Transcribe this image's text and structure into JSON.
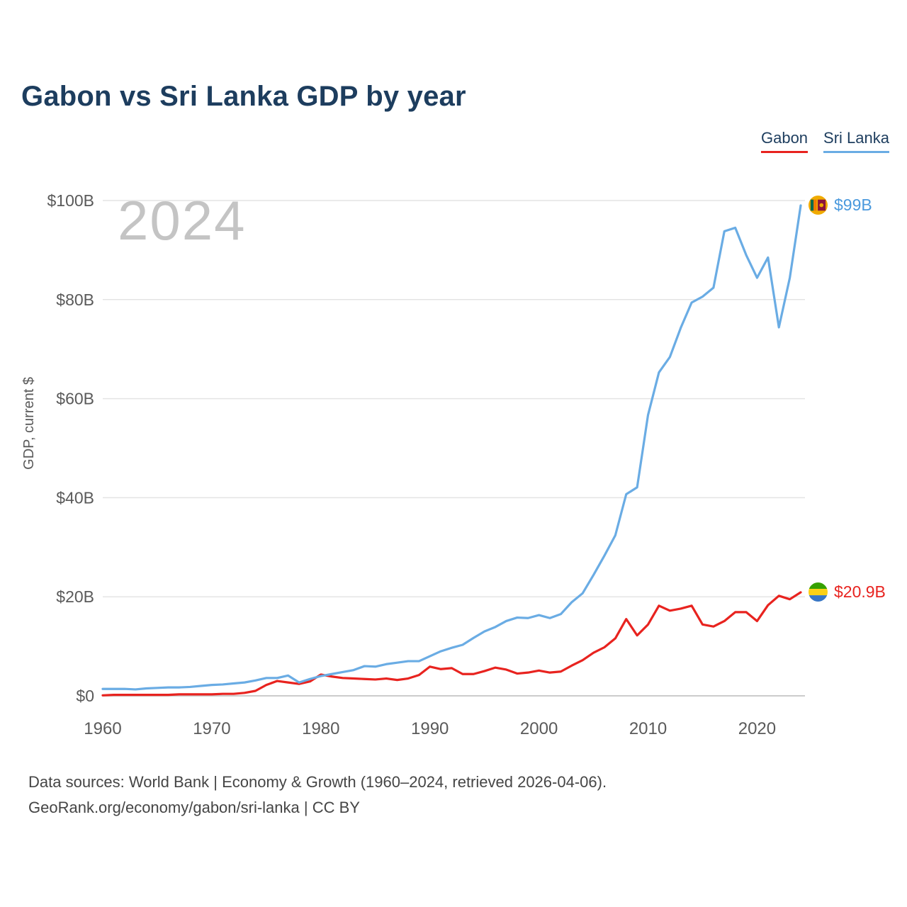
{
  "title": "Gabon vs Sri Lanka GDP by year",
  "watermark": "2024",
  "legend": [
    {
      "label": "Gabon",
      "color": "#e8231f"
    },
    {
      "label": "Sri Lanka",
      "color": "#6aace4"
    }
  ],
  "y_axis": {
    "label": "GDP, current $",
    "ticks": [
      {
        "value": 0,
        "label": "$0"
      },
      {
        "value": 20,
        "label": "$20B"
      },
      {
        "value": 40,
        "label": "$40B"
      },
      {
        "value": 60,
        "label": "$60B"
      },
      {
        "value": 80,
        "label": "$80B"
      },
      {
        "value": 100,
        "label": "$100B"
      }
    ]
  },
  "x_axis": {
    "ticks": [
      1960,
      1970,
      1980,
      1990,
      2000,
      2010,
      2020
    ]
  },
  "end_labels": [
    {
      "series": "Sri Lanka",
      "text": "$99B"
    },
    {
      "series": "Gabon",
      "text": "$20.9B"
    }
  ],
  "footer": {
    "line1": "Data sources: World Bank | Economy & Growth (1960–2024, retrieved 2026-04-06).",
    "line2": "GeoRank.org/economy/gabon/sri-lanka | CC BY"
  },
  "chart_data": {
    "type": "line",
    "title": "Gabon vs Sri Lanka GDP by year",
    "xlabel": "",
    "ylabel": "GDP, current $",
    "xlim": [
      1960,
      2024
    ],
    "ylim": [
      0,
      100
    ],
    "grid": true,
    "legend_position": "top-right",
    "units": "billions of current US$",
    "x": [
      1960,
      1961,
      1962,
      1963,
      1964,
      1965,
      1966,
      1967,
      1968,
      1969,
      1970,
      1971,
      1972,
      1973,
      1974,
      1975,
      1976,
      1977,
      1978,
      1979,
      1980,
      1981,
      1982,
      1983,
      1984,
      1985,
      1986,
      1987,
      1988,
      1989,
      1990,
      1991,
      1992,
      1993,
      1994,
      1995,
      1996,
      1997,
      1998,
      1999,
      2000,
      2001,
      2002,
      2003,
      2004,
      2005,
      2006,
      2007,
      2008,
      2009,
      2010,
      2011,
      2012,
      2013,
      2014,
      2015,
      2016,
      2017,
      2018,
      2019,
      2020,
      2021,
      2022,
      2023,
      2024
    ],
    "series": [
      {
        "name": "Gabon",
        "color": "#e8231f",
        "values": [
          0.1,
          0.2,
          0.2,
          0.2,
          0.2,
          0.2,
          0.2,
          0.3,
          0.3,
          0.3,
          0.3,
          0.4,
          0.4,
          0.6,
          1.0,
          2.2,
          3.0,
          2.7,
          2.4,
          2.9,
          4.3,
          3.9,
          3.6,
          3.5,
          3.4,
          3.3,
          3.5,
          3.2,
          3.5,
          4.2,
          5.9,
          5.4,
          5.6,
          4.4,
          4.4,
          5.0,
          5.7,
          5.3,
          4.5,
          4.7,
          5.1,
          4.7,
          4.9,
          6.1,
          7.2,
          8.7,
          9.8,
          11.6,
          15.5,
          12.2,
          14.4,
          18.2,
          17.2,
          17.6,
          18.2,
          14.4,
          14.0,
          15.1,
          16.9,
          16.9,
          15.1,
          18.3,
          20.2,
          19.5,
          20.9
        ]
      },
      {
        "name": "Sri Lanka",
        "color": "#6aace4",
        "values": [
          1.4,
          1.4,
          1.4,
          1.3,
          1.5,
          1.6,
          1.7,
          1.7,
          1.8,
          2.0,
          2.2,
          2.3,
          2.5,
          2.7,
          3.1,
          3.6,
          3.6,
          4.1,
          2.7,
          3.4,
          4.0,
          4.4,
          4.8,
          5.2,
          6.0,
          5.9,
          6.4,
          6.7,
          7.0,
          7.0,
          8.0,
          9.0,
          9.7,
          10.3,
          11.7,
          13.0,
          13.9,
          15.1,
          15.8,
          15.7,
          16.3,
          15.7,
          16.5,
          18.9,
          20.7,
          24.4,
          28.3,
          32.4,
          40.7,
          42.1,
          56.7,
          65.3,
          68.4,
          74.3,
          79.4,
          80.6,
          82.4,
          93.8,
          94.5,
          89.0,
          84.4,
          88.5,
          74.4,
          84.4,
          99.0
        ]
      }
    ]
  }
}
